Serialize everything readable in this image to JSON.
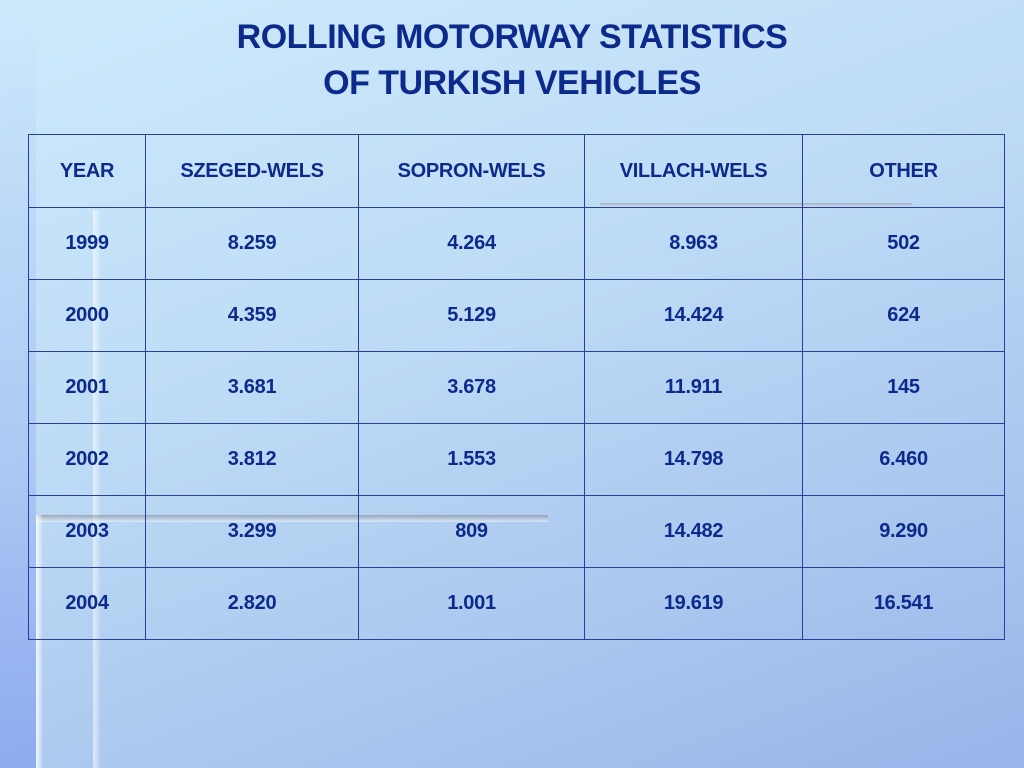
{
  "title": {
    "line1": "ROLLING MOTORWAY STATISTICS",
    "line2": "OF TURKISH VEHICLES"
  },
  "table": {
    "headers": [
      "YEAR",
      "SZEGED-WELS",
      "SOPRON-WELS",
      "VILLACH-WELS",
      "OTHER"
    ],
    "rows": [
      [
        "1999",
        "8.259",
        "4.264",
        "8.963",
        "502"
      ],
      [
        "2000",
        "4.359",
        "5.129",
        "14.424",
        "624"
      ],
      [
        "2001",
        "3.681",
        "3.678",
        "11.911",
        "145"
      ],
      [
        "2002",
        "3.812",
        "1.553",
        "14.798",
        "6.460"
      ],
      [
        "2003",
        "3.299",
        "809",
        "14.482",
        "9.290"
      ],
      [
        "2004",
        "2.820",
        "1.001",
        "19.619",
        "16.541"
      ]
    ]
  },
  "colors": {
    "text": "#0c2a8c",
    "border": "#2a3f9a",
    "background_top": "#cdeafc",
    "background_bottom": "#98b4ea"
  }
}
